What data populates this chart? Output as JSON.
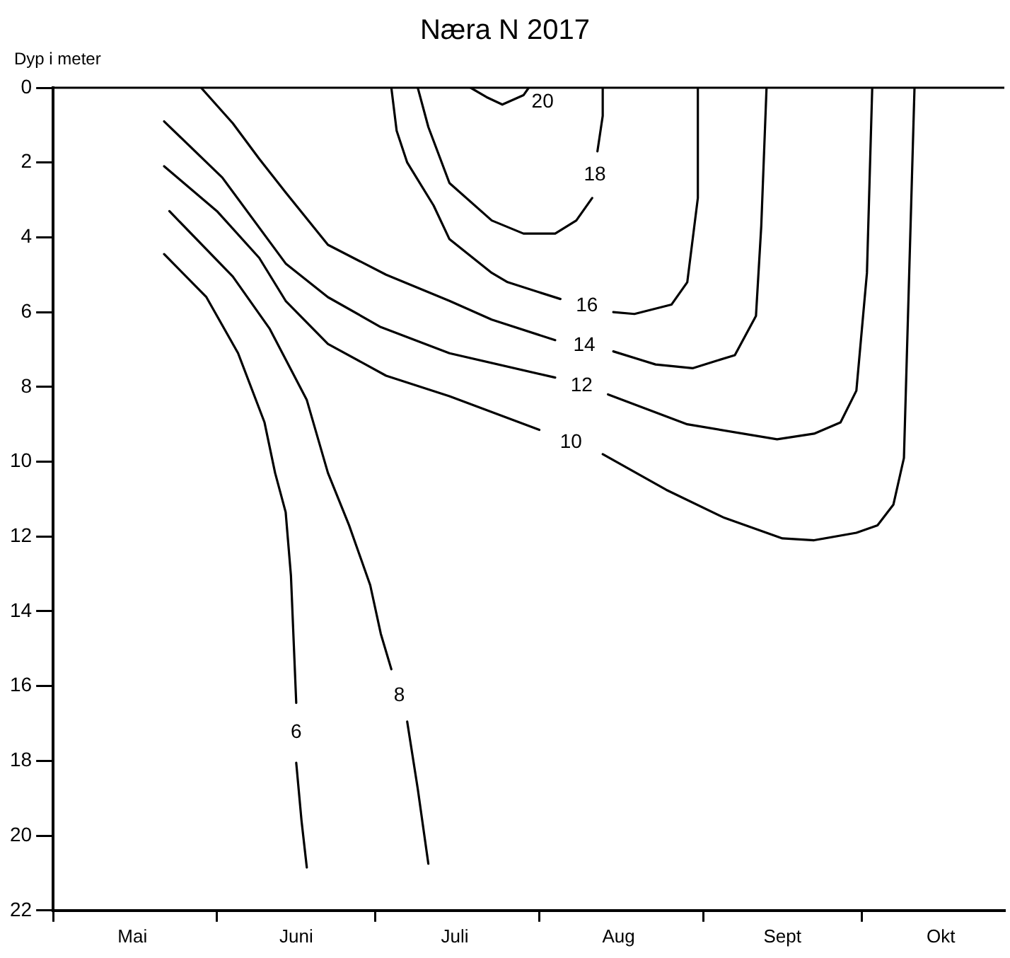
{
  "chart_data": {
    "type": "line",
    "title": "Næra N 2017",
    "ylabel": "Dyp i meter",
    "xlim": [
      "--05-01",
      "--10-28"
    ],
    "xticks": [
      {
        "value": "--05-01",
        "label": null
      },
      {
        "value": "--05-16",
        "label": "Mai"
      },
      {
        "value": "--06-01",
        "label": null
      },
      {
        "value": "--06-16",
        "label": "Juni"
      },
      {
        "value": "--07-01",
        "label": null
      },
      {
        "value": "--07-16",
        "label": "Juli"
      },
      {
        "value": "--08-01",
        "label": null
      },
      {
        "value": "--08-16",
        "label": "Aug"
      },
      {
        "value": "--09-01",
        "label": null
      },
      {
        "value": "--09-16",
        "label": "Sept"
      },
      {
        "value": "--10-01",
        "label": null
      },
      {
        "value": "--10-16",
        "label": "Okt"
      }
    ],
    "ylim": [
      22,
      0
    ],
    "yticks": [
      0,
      2,
      4,
      6,
      8,
      10,
      12,
      14,
      16,
      18,
      20,
      22
    ],
    "grid": false,
    "legend": false,
    "marker": "none",
    "line_style": "solid",
    "series": [
      {
        "name": "6",
        "color": "#000000",
        "x": [
          "--05-22",
          "--05-30",
          "--06-05",
          "--06-10",
          "--06-12",
          "--06-14",
          "--06-15",
          "--06-16",
          null,
          "--06-16",
          "--06-17",
          "--06-18"
        ],
        "values": [
          4.45,
          5.6,
          7.1,
          8.95,
          10.3,
          11.35,
          13.05,
          16.45,
          null,
          18.05,
          19.6,
          20.85
        ]
      },
      {
        "name": "8",
        "color": "#000000",
        "x": [
          "--05-23",
          "--06-04",
          "--06-11",
          "--06-18",
          "--06-22",
          "--06-26",
          "--06-30",
          "--07-02",
          "--07-04",
          null,
          "--07-07",
          "--07-09",
          "--07-11"
        ],
        "values": [
          3.3,
          5.05,
          6.45,
          8.35,
          10.3,
          11.7,
          13.3,
          14.6,
          15.55,
          null,
          16.95,
          18.75,
          20.75
        ]
      },
      {
        "name": "10",
        "color": "#000000",
        "x": [
          "--05-22",
          "--06-01",
          "--06-09",
          "--06-14",
          "--06-22",
          "--07-03",
          "--07-15",
          "--08-01",
          null,
          "--08-13",
          "--08-25",
          "--09-05",
          "--09-16",
          "--09-22",
          "--09-30",
          "--10-04",
          "--10-07",
          "--10-09",
          "--10-10",
          "--10-11"
        ],
        "values": [
          2.1,
          3.3,
          4.55,
          5.7,
          6.85,
          7.7,
          8.25,
          9.15,
          null,
          9.8,
          10.75,
          11.5,
          12.05,
          12.1,
          11.9,
          11.7,
          11.15,
          9.9,
          4.95,
          0
        ]
      },
      {
        "name": "12",
        "color": "#000000",
        "x": [
          "--05-22",
          "--06-02",
          "--06-14",
          "--06-22",
          "--07-02",
          "--07-15",
          "--08-04",
          null,
          "--08-14",
          "--08-29",
          "--09-15",
          "--09-22",
          "--09-27",
          "--09-30",
          "--10-02",
          "--10-03"
        ],
        "values": [
          0.9,
          2.4,
          4.7,
          5.6,
          6.4,
          7.1,
          7.75,
          null,
          8.2,
          9,
          9.4,
          9.25,
          8.95,
          8.1,
          4.95,
          0
        ]
      },
      {
        "name": "14",
        "color": "#000000",
        "x": [
          "--05-29",
          "--06-04",
          "--06-09",
          "--06-14",
          "--06-22",
          "--07-03",
          "--07-15",
          "--07-23",
          "--08-04",
          null,
          "--08-15",
          "--08-23",
          "--08-30",
          "--09-07",
          "--09-11",
          "--09-12",
          "--09-13"
        ],
        "values": [
          0,
          0.95,
          1.9,
          2.8,
          4.2,
          5,
          5.7,
          6.2,
          6.75,
          null,
          7.05,
          7.4,
          7.5,
          7.15,
          6.1,
          3.7,
          0
        ]
      },
      {
        "name": "16",
        "color": "#000000",
        "x": [
          "--07-04",
          "--07-05",
          "--07-07",
          "--07-12",
          "--07-15",
          "--07-23",
          "--07-26",
          "--08-05",
          null,
          "--08-15",
          "--08-19",
          "--08-26",
          "--08-29",
          "--08-31",
          "--08-31"
        ],
        "values": [
          0,
          1.15,
          2,
          3.15,
          4.05,
          4.95,
          5.2,
          5.65,
          null,
          6,
          6.05,
          5.8,
          5.2,
          2.95,
          0
        ]
      },
      {
        "name": "18",
        "color": "#000000",
        "x": [
          "--07-09",
          "--07-11",
          "--07-15",
          "--07-23",
          "--07-29",
          "--08-04",
          "--08-08",
          "--08-11",
          null,
          "--08-12",
          "--08-13",
          "--08-13"
        ],
        "values": [
          0,
          1.05,
          2.55,
          3.55,
          3.9,
          3.9,
          3.55,
          2.95,
          null,
          1.7,
          0.75,
          0
        ]
      },
      {
        "name": "20",
        "color": "#000000",
        "x": [
          "--07-19",
          "--07-22",
          "--07-25",
          "--07-29",
          "--07-30",
          null
        ],
        "values": [
          0,
          0.25,
          0.45,
          0.2,
          0,
          null
        ]
      }
    ]
  }
}
